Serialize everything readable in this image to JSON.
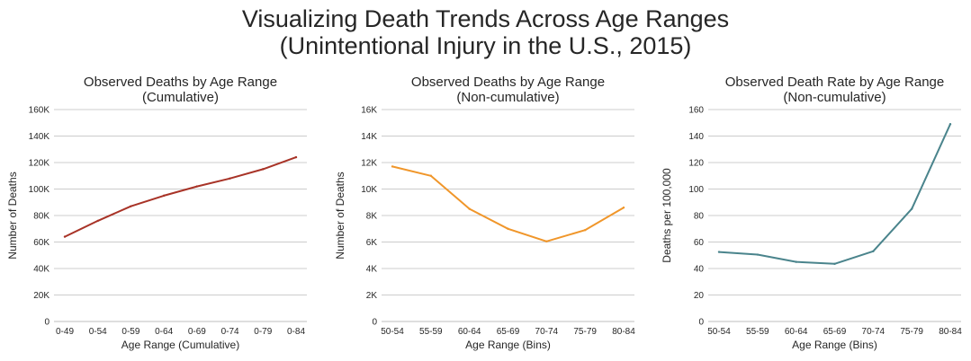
{
  "figure": {
    "title_line1": "Visualizing Death Trends Across Age Ranges",
    "title_line2": "(Unintentional Injury in the U.S., 2015)"
  },
  "chart_data": [
    {
      "type": "line",
      "title": "Observed Deaths by Age Range\n(Cumulative)",
      "xlabel": "Age Range (Cumulative)",
      "ylabel": "Number of Deaths",
      "categories": [
        "0-49",
        "0-54",
        "0-59",
        "0-64",
        "0-69",
        "0-74",
        "0-79",
        "0-84"
      ],
      "series": [
        {
          "values": [
            64000,
            76000,
            87000,
            95000,
            102000,
            108000,
            115000,
            124000
          ],
          "color": "#a83327"
        }
      ],
      "ylim": [
        0,
        160000
      ],
      "yticks": [
        0,
        20000,
        40000,
        60000,
        80000,
        100000,
        120000,
        140000,
        160000
      ],
      "yticklabels": [
        "0",
        "20K",
        "40K",
        "60K",
        "80K",
        "100K",
        "120K",
        "140K",
        "160K"
      ],
      "grid": "horizontal"
    },
    {
      "type": "line",
      "title": "Observed Deaths by Age Range\n(Non-cumulative)",
      "xlabel": "Age Range (Bins)",
      "ylabel": "Number of Deaths",
      "categories": [
        "50-54",
        "55-59",
        "60-64",
        "65-69",
        "70-74",
        "75-79",
        "80-84"
      ],
      "series": [
        {
          "values": [
            11700,
            11000,
            8500,
            7000,
            6050,
            6900,
            8600
          ],
          "color": "#f0962a"
        }
      ],
      "ylim": [
        0,
        16000
      ],
      "yticks": [
        0,
        2000,
        4000,
        6000,
        8000,
        10000,
        12000,
        14000,
        16000
      ],
      "yticklabels": [
        "0",
        "2K",
        "4K",
        "6K",
        "8K",
        "10K",
        "12K",
        "14K",
        "16K"
      ],
      "grid": "horizontal"
    },
    {
      "type": "line",
      "title": "Observed Death Rate by Age Range\n(Non-cumulative)",
      "xlabel": "Age Range (Bins)",
      "ylabel": "Deaths per 100,000",
      "categories": [
        "50-54",
        "55-59",
        "60-64",
        "65-69",
        "70-74",
        "75-79",
        "80-84"
      ],
      "series": [
        {
          "values": [
            52.5,
            50.5,
            45,
            43.5,
            53,
            85,
            149
          ],
          "color": "#4a848c"
        }
      ],
      "ylim": [
        0,
        160
      ],
      "yticks": [
        0,
        20,
        40,
        60,
        80,
        100,
        120,
        140,
        160
      ],
      "yticklabels": [
        "0",
        "20",
        "40",
        "60",
        "80",
        "100",
        "120",
        "140",
        "160"
      ],
      "grid": "horizontal"
    }
  ]
}
